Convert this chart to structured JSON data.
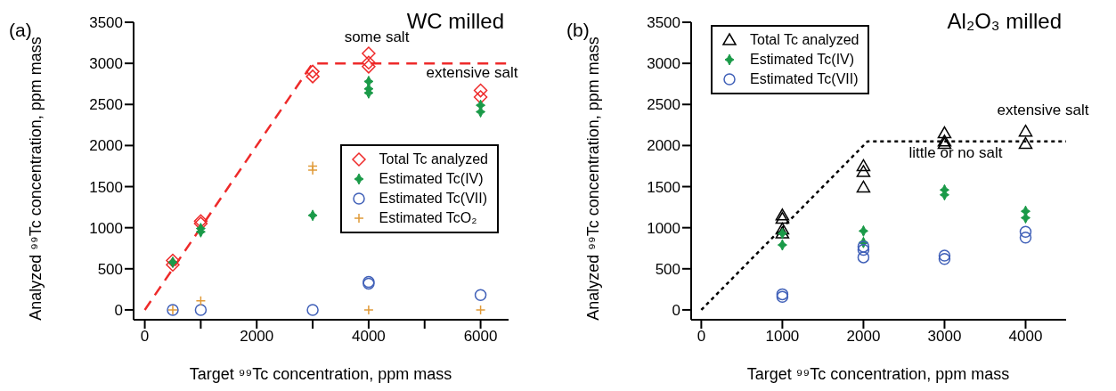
{
  "chart_data": [
    {
      "type": "scatter",
      "title": "WC milled",
      "xlabel": "Target ⁹⁹Tc concentration, ppm mass",
      "ylabel": "Analyzed ⁹⁹Tc concentration, ppm mass",
      "annotations": [
        "(a)",
        "some salt",
        "extensive salt"
      ],
      "xlim": [
        -200,
        6500
      ],
      "ylim": [
        -120,
        3500
      ],
      "xticks": [
        0,
        {
          "value": 1000,
          "label": null
        },
        2000,
        {
          "value": 3000,
          "label": null
        },
        4000,
        {
          "value": 5000,
          "label": null
        },
        6000
      ],
      "yticks": [
        0,
        500,
        1000,
        1500,
        2000,
        2500,
        3000,
        3500
      ],
      "legend": "right",
      "series": [
        {
          "type": "line",
          "color": "#ee2a2a",
          "line_style": "dashed",
          "marker": "none",
          "x": [
            0,
            3000,
            6500
          ],
          "values": [
            0,
            3000,
            3000
          ]
        },
        {
          "name": "Total Tc analyzed",
          "color": "#ee2a2a",
          "marker": "diamond",
          "x": [
            500,
            500,
            1000,
            1000,
            3000,
            3000,
            4000,
            4000,
            4000,
            6000,
            6000
          ],
          "values": [
            600,
            550,
            1080,
            1050,
            2900,
            2840,
            3120,
            3010,
            2960,
            2670,
            2590
          ]
        },
        {
          "name": "Estimated Tc(IV)",
          "color": "#1a9a48",
          "marker": "star",
          "x": [
            500,
            1000,
            1000,
            3000,
            4000,
            4000,
            4000,
            6000,
            6000
          ],
          "values": [
            580,
            990,
            950,
            1150,
            2780,
            2690,
            2640,
            2490,
            2410
          ]
        },
        {
          "name": "Estimated Tc(VII)",
          "color": "#4060b8",
          "marker": "circle",
          "x": [
            500,
            1000,
            3000,
            4000,
            4000,
            6000
          ],
          "values": [
            0,
            0,
            0,
            340,
            320,
            180
          ]
        },
        {
          "name": "Estimated TcO₂",
          "color": "#e09a38",
          "marker": "cross",
          "x": [
            500,
            1000,
            3000,
            3000,
            4000,
            6000
          ],
          "values": [
            0,
            110,
            1750,
            1700,
            0,
            0
          ]
        }
      ]
    },
    {
      "type": "scatter",
      "title": "Al₂O₃ milled",
      "xlabel": "Target ⁹⁹Tc concentration, ppm mass",
      "ylabel": "Analyzed ⁹⁹Tc concentration, ppm mass",
      "annotations": [
        "(b)",
        "extensive salt",
        "little or no salt"
      ],
      "xlim": [
        -125,
        4500
      ],
      "ylim": [
        -120,
        3500
      ],
      "xticks": [
        0,
        1000,
        2000,
        3000,
        4000
      ],
      "yticks": [
        0,
        500,
        1000,
        1500,
        2000,
        2500,
        3000,
        3500
      ],
      "legend": "top left",
      "series": [
        {
          "type": "line",
          "color": "#000000",
          "line_style": "dotted",
          "marker": "none",
          "x": [
            0,
            2050,
            4500
          ],
          "values": [
            0,
            2050,
            2050
          ]
        },
        {
          "name": "Total Tc analyzed",
          "color": "#000000",
          "marker": "triangle",
          "x": [
            1000,
            1000,
            1000,
            1000,
            2000,
            2000,
            2000,
            3000,
            3000,
            3000,
            4000,
            4000
          ],
          "values": [
            1150,
            1110,
            980,
            930,
            1750,
            1680,
            1490,
            2150,
            2050,
            2020,
            2170,
            2020
          ]
        },
        {
          "name": "Estimated Tc(IV)",
          "color": "#1a9a48",
          "marker": "star",
          "x": [
            1000,
            1000,
            2000,
            2000,
            3000,
            3000,
            4000,
            4000
          ],
          "values": [
            930,
            790,
            960,
            820,
            1460,
            1400,
            1200,
            1120
          ]
        },
        {
          "name": "Estimated Tc(VII)",
          "color": "#4060b8",
          "marker": "circle",
          "x": [
            1000,
            1000,
            2000,
            2000,
            2000,
            3000,
            3000,
            4000,
            4000
          ],
          "values": [
            190,
            160,
            770,
            730,
            640,
            660,
            620,
            950,
            880
          ]
        }
      ]
    }
  ]
}
